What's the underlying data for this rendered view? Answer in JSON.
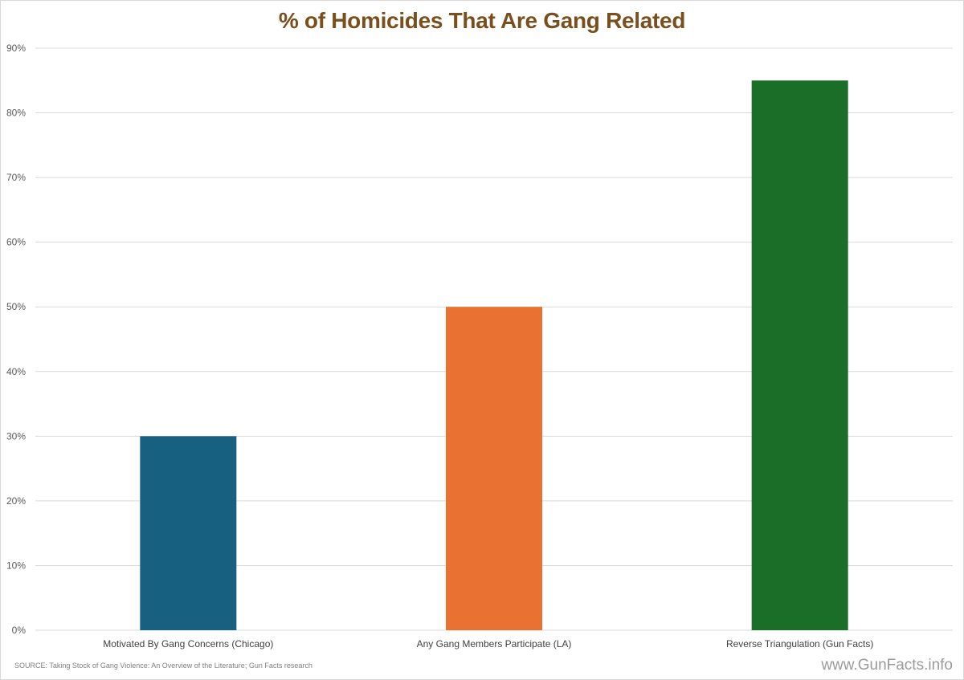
{
  "chart_data": {
    "type": "bar",
    "title": "% of Homicides That Are Gang Related",
    "categories": [
      "Motivated By Gang Concerns (Chicago)",
      "Any Gang Members Participate (LA)",
      "Reverse Triangulation (Gun Facts)"
    ],
    "values": [
      30,
      50,
      85
    ],
    "colors": [
      "#17607f",
      "#e97132",
      "#1a6e27"
    ],
    "ylim": [
      0,
      90
    ],
    "yticks": [
      "0%",
      "10%",
      "20%",
      "30%",
      "40%",
      "50%",
      "60%",
      "70%",
      "80%",
      "90%"
    ],
    "grid": true,
    "legend": "none"
  },
  "footer": {
    "source": "SOURCE: Taking Stock of Gang Violence: An Overview of the Literature; Gun Facts research",
    "watermark": "www.GunFacts.info"
  }
}
